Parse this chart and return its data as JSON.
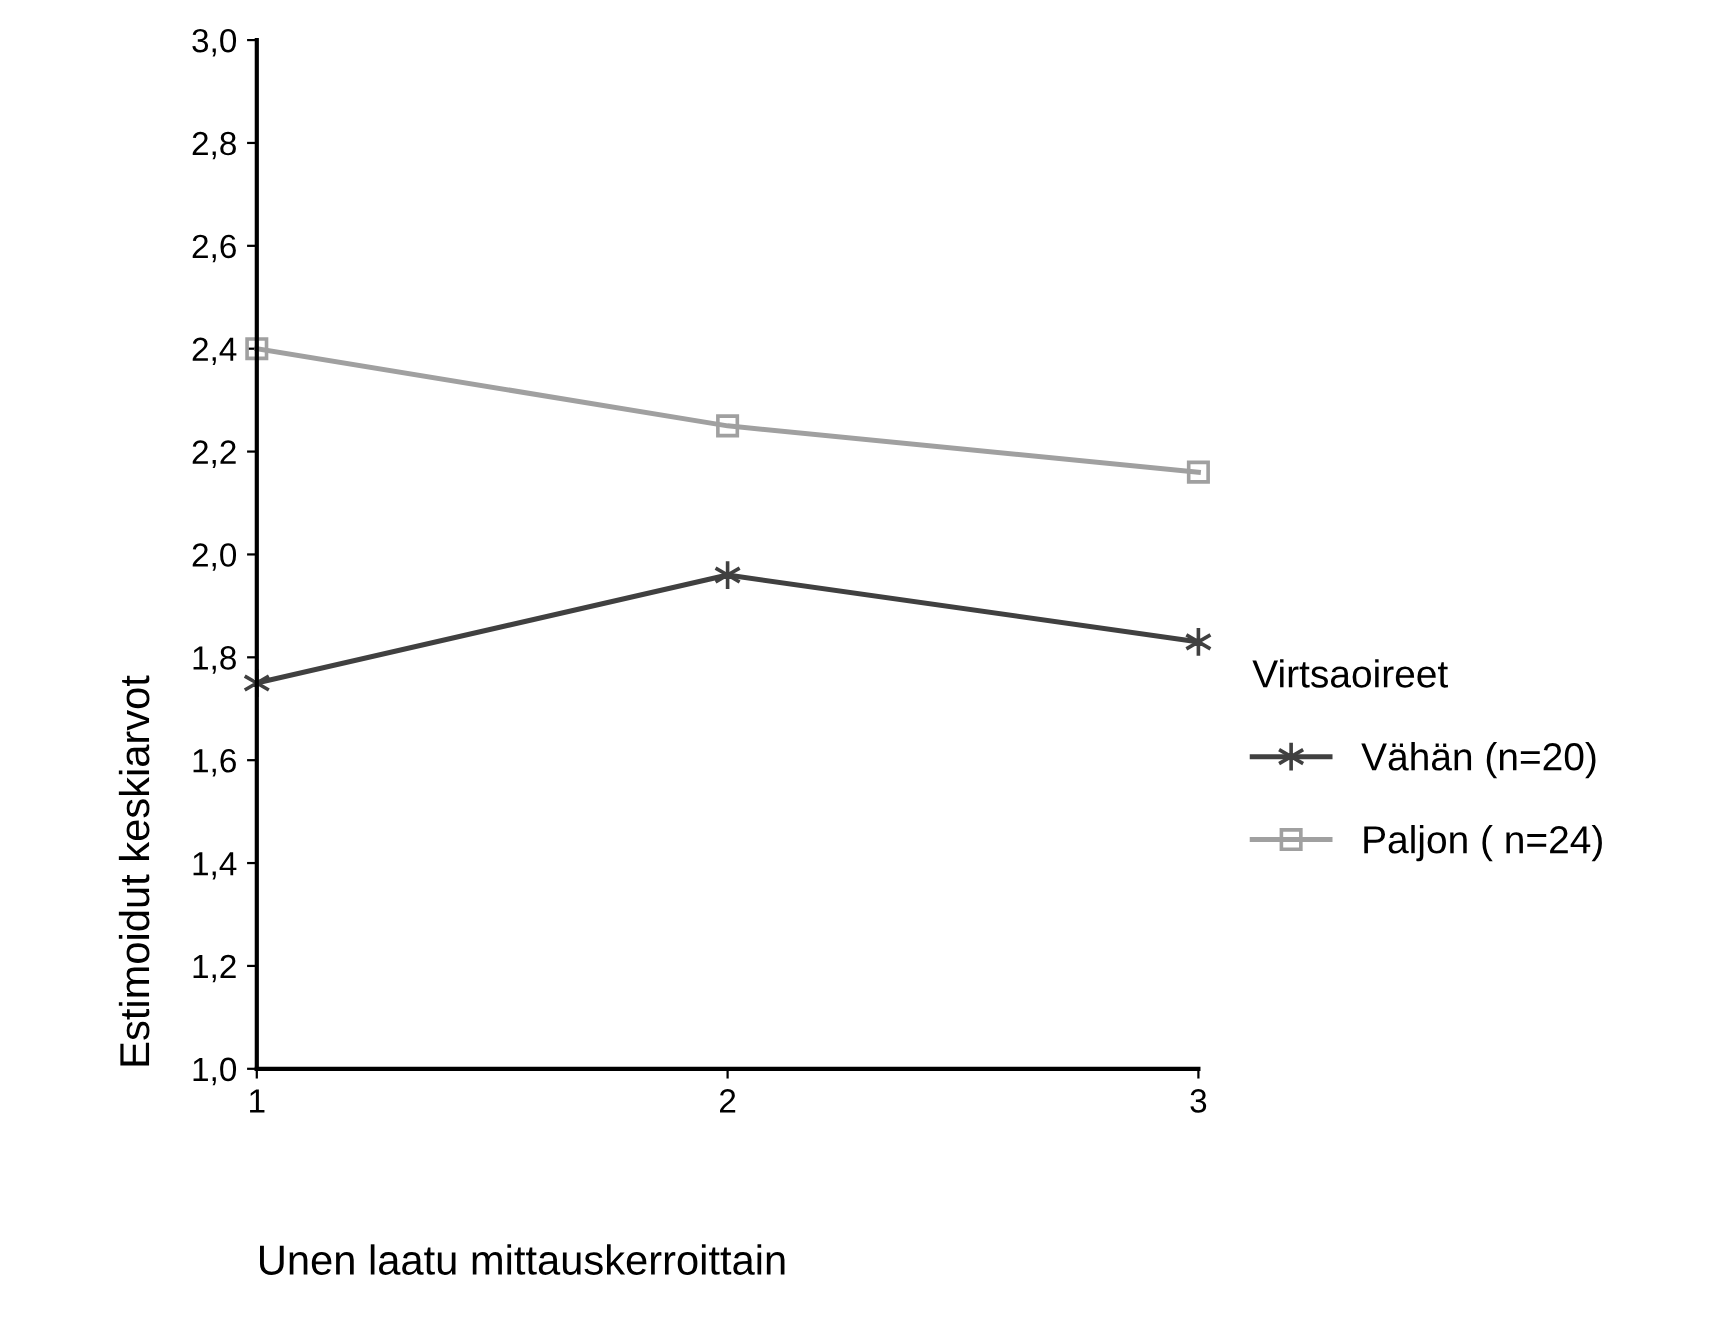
{
  "chart_data": {
    "type": "line",
    "xlabel": "Unen laatu mittauskerroittain",
    "ylabel": "Estimoidut keskiarvot",
    "legend_title": "Virtsaoireet",
    "x": [
      1,
      2,
      3
    ],
    "series": [
      {
        "name": "Vähän (n=20)",
        "color": "#404040",
        "marker": "cross",
        "values": [
          1.75,
          1.96,
          1.83
        ]
      },
      {
        "name": "Paljon ( n=24)",
        "color": "#a0a0a0",
        "marker": "square",
        "values": [
          2.4,
          2.25,
          2.16
        ]
      }
    ],
    "xlim": [
      1,
      3
    ],
    "xticks": [
      1,
      2,
      3
    ],
    "ylim": [
      1.0,
      3.0
    ],
    "yticks": [
      {
        "value": 1.0,
        "label": "1,0"
      },
      {
        "value": 1.2,
        "label": "1,2"
      },
      {
        "value": 1.4,
        "label": "1,4"
      },
      {
        "value": 1.6,
        "label": "1,6"
      },
      {
        "value": 1.8,
        "label": "1,8"
      },
      {
        "value": 2.0,
        "label": "2,0"
      },
      {
        "value": 2.2,
        "label": "2,2"
      },
      {
        "value": 2.4,
        "label": "2,4"
      },
      {
        "value": 2.6,
        "label": "2,6"
      },
      {
        "value": 2.8,
        "label": "2,8"
      },
      {
        "value": 3.0,
        "label": "3,0"
      }
    ],
    "grid": false,
    "legend": "right",
    "line_style": "solid"
  }
}
